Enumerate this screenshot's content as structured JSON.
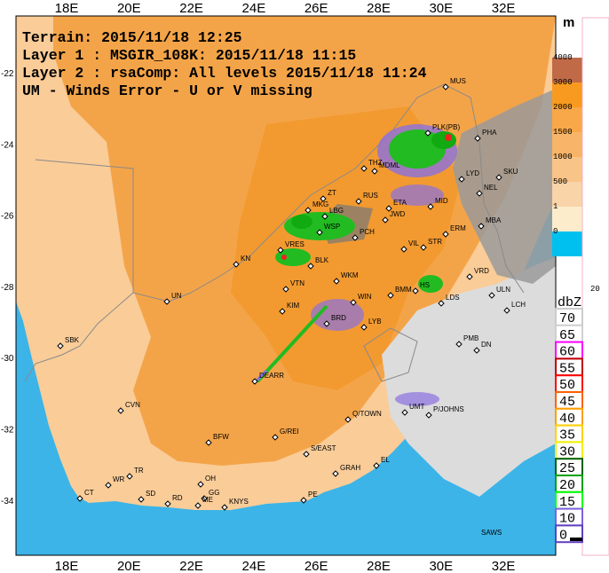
{
  "header": {
    "lines": [
      "Terrain: 2015/11/18 12:25",
      "Layer 1 : MSGIR_108K: 2015/11/18 11:15",
      "Layer 2 : rsaComp: All levels 2015/11/18 11:24",
      "UM - Winds Error - U or V missing"
    ]
  },
  "axes": {
    "longitudes": [
      "18E",
      "20E",
      "22E",
      "24E",
      "26E",
      "28E",
      "30E",
      "32E"
    ],
    "latitudes": [
      "-22",
      "-24",
      "-26",
      "-28",
      "-30",
      "-32",
      "-34"
    ]
  },
  "stations": [
    "MUS",
    "PHA",
    "PLK(PB)",
    "THZ",
    "MDML",
    "LYD",
    "SKU",
    "NEL",
    "ZT",
    "RUS",
    "MKG",
    "ETA",
    "JWD",
    "MID",
    "LBG",
    "MBA",
    "WSP",
    "PCH",
    "ERM",
    "VRES",
    "KN",
    "BLK",
    "WKM",
    "VIL",
    "STR",
    "UN",
    "VTN",
    "BMM",
    "HS",
    "LDS",
    "VRD",
    "ULN",
    "KIM",
    "WIN",
    "BRD",
    "LYB",
    "LCH",
    "SBK",
    "PMB",
    "DN",
    "DEARR",
    "UMT",
    "P/JOHNS",
    "CVN",
    "Q/TOWN",
    "G/REI",
    "BFW",
    "S/EAST",
    "TR",
    "WR",
    "OH",
    "CT",
    "SD",
    "RD",
    "GG",
    "ME",
    "KNYS",
    "GRAH",
    "EL",
    "PE"
  ],
  "credit": "SAWS",
  "height_legend": {
    "unit": "m",
    "labels": [
      "4000",
      "3000",
      "2000",
      "1500",
      "1000",
      "500",
      "1",
      "0"
    ]
  },
  "side_label": "20",
  "reflectivity_legend": {
    "unit": "dbZ",
    "labels": [
      "70",
      "65",
      "60",
      "55",
      "50",
      "45",
      "40",
      "35",
      "30",
      "25",
      "20",
      "15",
      "10",
      "0"
    ]
  }
}
